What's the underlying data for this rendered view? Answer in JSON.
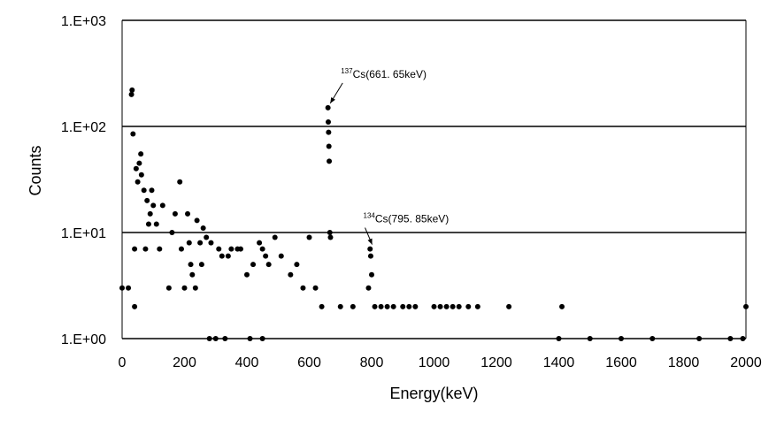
{
  "chart_data": {
    "type": "scatter",
    "xlabel": "Energy(keV)",
    "ylabel": "Counts",
    "xlim": [
      0,
      2000
    ],
    "ylim": [
      1,
      1000
    ],
    "yscale": "log",
    "grid": "horizontal major",
    "legend": "none",
    "marker_color": "#000000",
    "x_ticks": [
      "0",
      "200",
      "400",
      "600",
      "800",
      "1000",
      "1200",
      "1400",
      "1600",
      "1800",
      "2000"
    ],
    "y_ticks": [
      "1.E+00",
      "1.E+01",
      "1.E+02",
      "1.E+03"
    ],
    "annotations": [
      {
        "sup": "137",
        "text": "Cs(661. 65keV)",
        "x": 661.65,
        "y": 150
      },
      {
        "sup": "134",
        "text": "Cs(795. 85keV)",
        "x": 795.85,
        "y": 7
      }
    ],
    "series": [
      {
        "points": [
          [
            0,
            3
          ],
          [
            20,
            3
          ],
          [
            30,
            200
          ],
          [
            32,
            220
          ],
          [
            35,
            85
          ],
          [
            40,
            2
          ],
          [
            40,
            7
          ],
          [
            45,
            40
          ],
          [
            50,
            30
          ],
          [
            55,
            45
          ],
          [
            60,
            55
          ],
          [
            62,
            35
          ],
          [
            70,
            25
          ],
          [
            75,
            7
          ],
          [
            80,
            20
          ],
          [
            85,
            12
          ],
          [
            90,
            15
          ],
          [
            95,
            25
          ],
          [
            100,
            18
          ],
          [
            110,
            12
          ],
          [
            120,
            7
          ],
          [
            130,
            18
          ],
          [
            150,
            3
          ],
          [
            160,
            10
          ],
          [
            170,
            15
          ],
          [
            185,
            30
          ],
          [
            190,
            7
          ],
          [
            200,
            3
          ],
          [
            210,
            15
          ],
          [
            215,
            8
          ],
          [
            220,
            5
          ],
          [
            225,
            4
          ],
          [
            235,
            3
          ],
          [
            240,
            13
          ],
          [
            250,
            8
          ],
          [
            255,
            5
          ],
          [
            260,
            11
          ],
          [
            270,
            9
          ],
          [
            285,
            8
          ],
          [
            310,
            7
          ],
          [
            320,
            6
          ],
          [
            340,
            6
          ],
          [
            350,
            7
          ],
          [
            370,
            7
          ],
          [
            380,
            7
          ],
          [
            400,
            4
          ],
          [
            420,
            5
          ],
          [
            440,
            8
          ],
          [
            450,
            7
          ],
          [
            460,
            6
          ],
          [
            470,
            5
          ],
          [
            490,
            9
          ],
          [
            510,
            6
          ],
          [
            540,
            4
          ],
          [
            560,
            5
          ],
          [
            580,
            3
          ],
          [
            600,
            9
          ],
          [
            620,
            3
          ],
          [
            640,
            2
          ],
          [
            660,
            150
          ],
          [
            661,
            110
          ],
          [
            662,
            88
          ],
          [
            663,
            65
          ],
          [
            664,
            47
          ],
          [
            666,
            10
          ],
          [
            668,
            9
          ],
          [
            700,
            2
          ],
          [
            740,
            2
          ],
          [
            790,
            3
          ],
          [
            795,
            7
          ],
          [
            797,
            6
          ],
          [
            800,
            4
          ],
          [
            810,
            2
          ],
          [
            830,
            2
          ],
          [
            850,
            2
          ],
          [
            870,
            2
          ],
          [
            900,
            2
          ],
          [
            920,
            2
          ],
          [
            940,
            2
          ],
          [
            1000,
            2
          ],
          [
            1020,
            2
          ],
          [
            1040,
            2
          ],
          [
            1060,
            2
          ],
          [
            1080,
            2
          ],
          [
            1110,
            2
          ],
          [
            1140,
            2
          ],
          [
            1240,
            2
          ],
          [
            1410,
            2
          ],
          [
            2000,
            2
          ],
          [
            280,
            1
          ],
          [
            300,
            1
          ],
          [
            330,
            1
          ],
          [
            410,
            1
          ],
          [
            450,
            1
          ],
          [
            1400,
            1
          ],
          [
            1500,
            1
          ],
          [
            1600,
            1
          ],
          [
            1700,
            1
          ],
          [
            1850,
            1
          ],
          [
            1950,
            1
          ],
          [
            1990,
            1
          ]
        ]
      }
    ]
  }
}
